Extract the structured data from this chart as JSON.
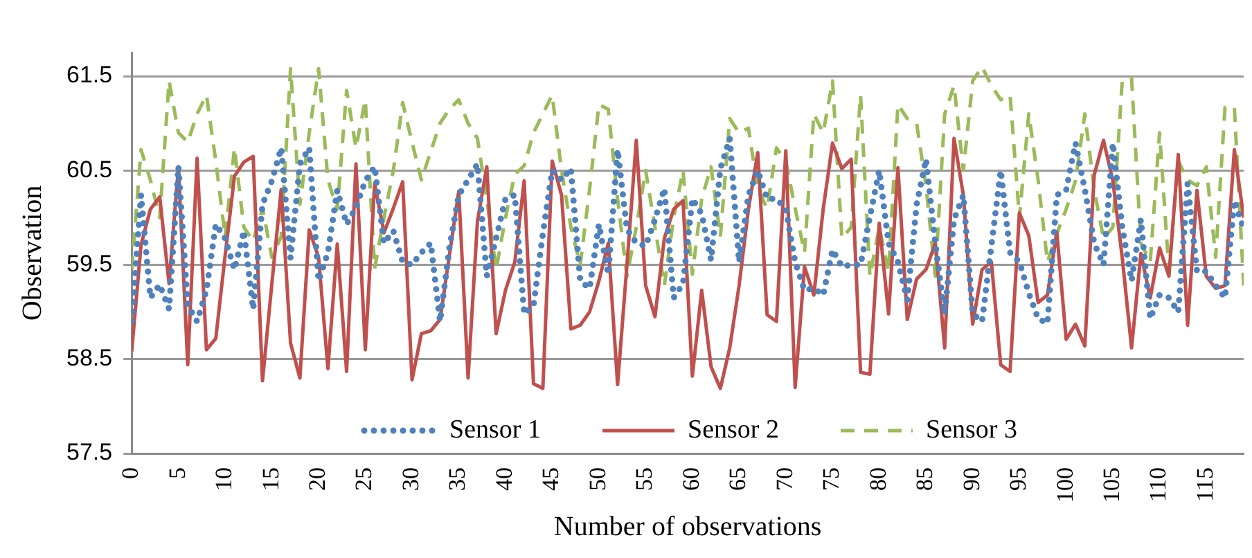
{
  "chart_data": {
    "type": "line",
    "xlabel": "Number of observations",
    "ylabel": "Observation",
    "x": [
      0,
      1,
      2,
      3,
      4,
      5,
      6,
      7,
      8,
      9,
      10,
      11,
      12,
      13,
      14,
      15,
      16,
      17,
      18,
      19,
      20,
      21,
      22,
      23,
      24,
      25,
      26,
      27,
      28,
      29,
      30,
      31,
      32,
      33,
      34,
      35,
      36,
      37,
      38,
      39,
      40,
      41,
      42,
      43,
      44,
      45,
      46,
      47,
      48,
      49,
      50,
      51,
      52,
      53,
      54,
      55,
      56,
      57,
      58,
      59,
      60,
      61,
      62,
      63,
      64,
      65,
      66,
      67,
      68,
      69,
      70,
      71,
      72,
      73,
      74,
      75,
      76,
      77,
      78,
      79,
      80,
      81,
      82,
      83,
      84,
      85,
      86,
      87,
      88,
      89,
      90,
      91,
      92,
      93,
      94,
      95,
      96,
      97,
      98,
      99,
      100,
      101,
      102,
      103,
      104,
      105,
      106,
      107,
      108,
      109,
      110,
      111,
      112,
      113,
      114,
      115,
      116,
      117,
      118,
      119
    ],
    "series": [
      {
        "name": "Sensor 1",
        "color": "#4f81bd",
        "line_style": "dotted",
        "values": [
          58.9,
          60.24,
          59.15,
          59.29,
          59.03,
          60.54,
          59.07,
          58.9,
          59.23,
          59.93,
          59.78,
          59.45,
          59.86,
          59.03,
          60.14,
          60.39,
          60.74,
          59.57,
          60.57,
          60.74,
          59.33,
          59.63,
          60.29,
          59.93,
          60.11,
          60.39,
          60.54,
          59.73,
          59.86,
          59.53,
          59.5,
          59.63,
          59.73,
          58.9,
          59.68,
          60.24,
          60.4,
          60.57,
          59.38,
          59.78,
          60.2,
          60.24,
          58.98,
          59.07,
          59.83,
          60.5,
          60.4,
          60.52,
          59.33,
          59.25,
          59.93,
          59.4,
          60.72,
          59.88,
          59.73,
          59.7,
          59.98,
          60.31,
          59.15,
          59.3,
          60.2,
          60.04,
          59.55,
          60.52,
          60.84,
          59.53,
          60.24,
          60.5,
          60.2,
          60.2,
          60.09,
          59.53,
          59.23,
          59.25,
          59.18,
          59.66,
          59.48,
          59.5,
          59.5,
          60.01,
          60.5,
          59.73,
          59.53,
          59.13,
          60.14,
          60.62,
          59.73,
          58.98,
          59.98,
          60.24,
          58.98,
          58.9,
          59.7,
          60.5,
          59.63,
          59.53,
          59.2,
          58.93,
          58.88,
          60.24,
          60.29,
          60.79,
          60.3,
          59.73,
          59.5,
          60.79,
          59.9,
          59.33,
          59.98,
          58.93,
          59.18,
          59.15,
          59.0,
          60.36,
          59.43,
          59.43,
          59.28,
          59.15,
          60.18,
          59.88
        ]
      },
      {
        "name": "Sensor 2",
        "color": "#c0504d",
        "line_style": "solid",
        "values": [
          58.58,
          59.71,
          60.09,
          60.22,
          59.3,
          60.54,
          58.44,
          60.63,
          58.6,
          58.72,
          59.6,
          60.44,
          60.59,
          60.65,
          58.27,
          59.3,
          60.3,
          58.67,
          58.3,
          59.87,
          59.58,
          58.4,
          59.72,
          58.37,
          60.57,
          58.6,
          60.36,
          59.84,
          60.1,
          60.38,
          58.28,
          58.77,
          58.8,
          58.92,
          59.6,
          60.28,
          58.3,
          59.96,
          60.54,
          58.77,
          59.23,
          59.53,
          60.39,
          58.24,
          58.19,
          60.6,
          60.24,
          58.82,
          58.86,
          59.0,
          59.33,
          59.73,
          58.23,
          59.5,
          60.82,
          59.28,
          58.95,
          59.78,
          60.09,
          60.18,
          58.32,
          59.23,
          58.42,
          58.19,
          58.62,
          59.28,
          60.09,
          60.69,
          58.97,
          58.9,
          60.71,
          58.2,
          59.48,
          59.18,
          60.09,
          60.79,
          60.52,
          60.62,
          58.36,
          58.34,
          59.94,
          58.98,
          60.53,
          58.92,
          59.35,
          59.45,
          59.73,
          58.62,
          60.84,
          60.24,
          58.87,
          59.45,
          59.53,
          58.44,
          58.37,
          60.05,
          59.81,
          59.1,
          59.18,
          59.85,
          58.71,
          58.87,
          58.64,
          60.45,
          60.82,
          60.39,
          59.58,
          58.62,
          59.62,
          59.15,
          59.68,
          59.38,
          60.67,
          58.86,
          60.29,
          59.38,
          59.25,
          59.28,
          60.72,
          60.0
        ]
      },
      {
        "name": "Sensor 3",
        "color": "#9bbb59",
        "line_style": "dashed",
        "values": [
          59.45,
          60.72,
          60.4,
          60.0,
          61.45,
          60.9,
          60.8,
          61.1,
          61.3,
          60.6,
          59.8,
          60.74,
          59.9,
          59.75,
          60.1,
          59.58,
          59.8,
          61.58,
          60.14,
          60.9,
          61.58,
          60.4,
          60.09,
          61.35,
          60.74,
          61.25,
          59.46,
          60.0,
          60.5,
          61.22,
          60.8,
          60.4,
          60.7,
          61.0,
          61.15,
          61.25,
          61.0,
          60.84,
          60.2,
          59.45,
          60.0,
          60.46,
          60.55,
          60.9,
          61.1,
          61.3,
          60.5,
          59.9,
          59.5,
          60.3,
          61.2,
          61.15,
          60.2,
          59.38,
          59.9,
          60.5,
          59.9,
          59.28,
          60.0,
          60.5,
          59.4,
          60.2,
          60.54,
          59.8,
          61.05,
          60.9,
          60.95,
          60.3,
          60.1,
          60.74,
          60.6,
          60.1,
          59.63,
          61.1,
          60.9,
          61.45,
          59.78,
          59.9,
          61.3,
          59.38,
          59.9,
          59.43,
          61.2,
          61.05,
          61.0,
          60.34,
          59.38,
          61.1,
          61.4,
          60.5,
          61.45,
          61.6,
          61.4,
          61.25,
          61.3,
          60.0,
          61.1,
          60.4,
          59.53,
          59.83,
          60.09,
          60.39,
          61.1,
          60.3,
          59.78,
          59.9,
          61.45,
          61.48,
          59.73,
          59.53,
          60.9,
          59.43,
          60.6,
          60.4,
          60.34,
          60.54,
          59.58,
          61.17,
          61.17,
          59.28
        ]
      }
    ],
    "xlim": [
      0,
      119
    ],
    "xticks": [
      0,
      5,
      10,
      15,
      20,
      25,
      30,
      35,
      40,
      45,
      50,
      55,
      60,
      65,
      70,
      75,
      80,
      85,
      90,
      95,
      100,
      105,
      110,
      115
    ],
    "ylim": [
      57.5,
      61.75
    ],
    "yticks": [
      57.5,
      58.5,
      59.5,
      60.5,
      61.5
    ],
    "grid": "y",
    "legend": "bottom",
    "marker": "none"
  }
}
